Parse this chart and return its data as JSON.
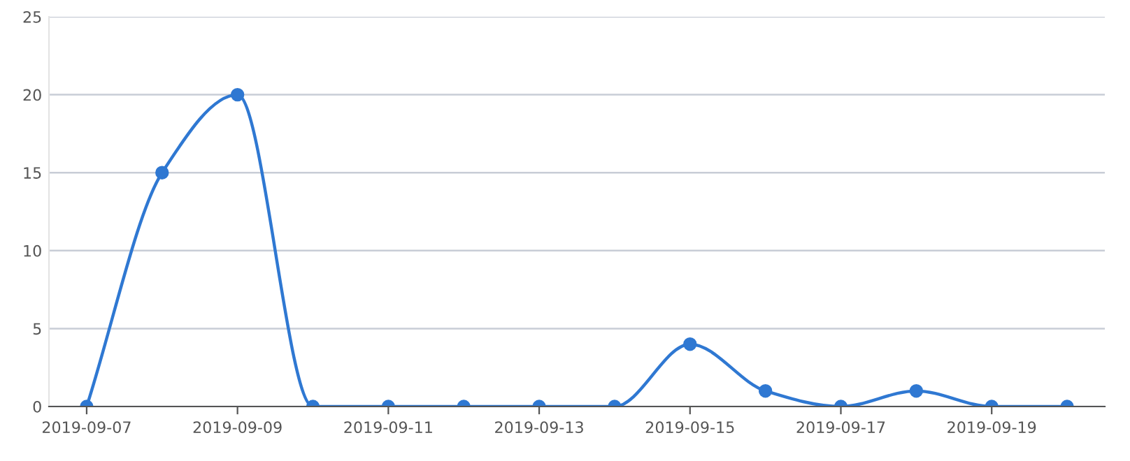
{
  "chart_data": {
    "type": "line",
    "x": [
      "2019-09-07",
      "2019-09-08",
      "2019-09-09",
      "2019-09-10",
      "2019-09-11",
      "2019-09-12",
      "2019-09-13",
      "2019-09-14",
      "2019-09-15",
      "2019-09-16",
      "2019-09-17",
      "2019-09-18",
      "2019-09-19",
      "2019-09-20"
    ],
    "series": [
      {
        "color": "#2f78d2",
        "values": [
          0,
          15,
          20,
          0,
          0,
          0,
          0,
          0,
          4,
          1,
          0,
          1,
          0,
          0
        ]
      }
    ],
    "xlim": [
      "2019-09-06T12:00",
      "2019-09-20T12:00"
    ],
    "xticks": [
      {
        "value": "2019-09-07",
        "label": "2019-09-07"
      },
      {
        "value": "2019-09-09",
        "label": "2019-09-09"
      },
      {
        "value": "2019-09-11",
        "label": "2019-09-11"
      },
      {
        "value": "2019-09-13",
        "label": "2019-09-13"
      },
      {
        "value": "2019-09-15",
        "label": "2019-09-15"
      },
      {
        "value": "2019-09-17",
        "label": "2019-09-17"
      },
      {
        "value": "2019-09-19",
        "label": "2019-09-19"
      }
    ],
    "ylim": [
      0,
      25
    ],
    "yticks": [
      0,
      5,
      10,
      15,
      20,
      25
    ],
    "grid": "y",
    "marker": "circle",
    "line_style": "solid",
    "legend": false
  }
}
